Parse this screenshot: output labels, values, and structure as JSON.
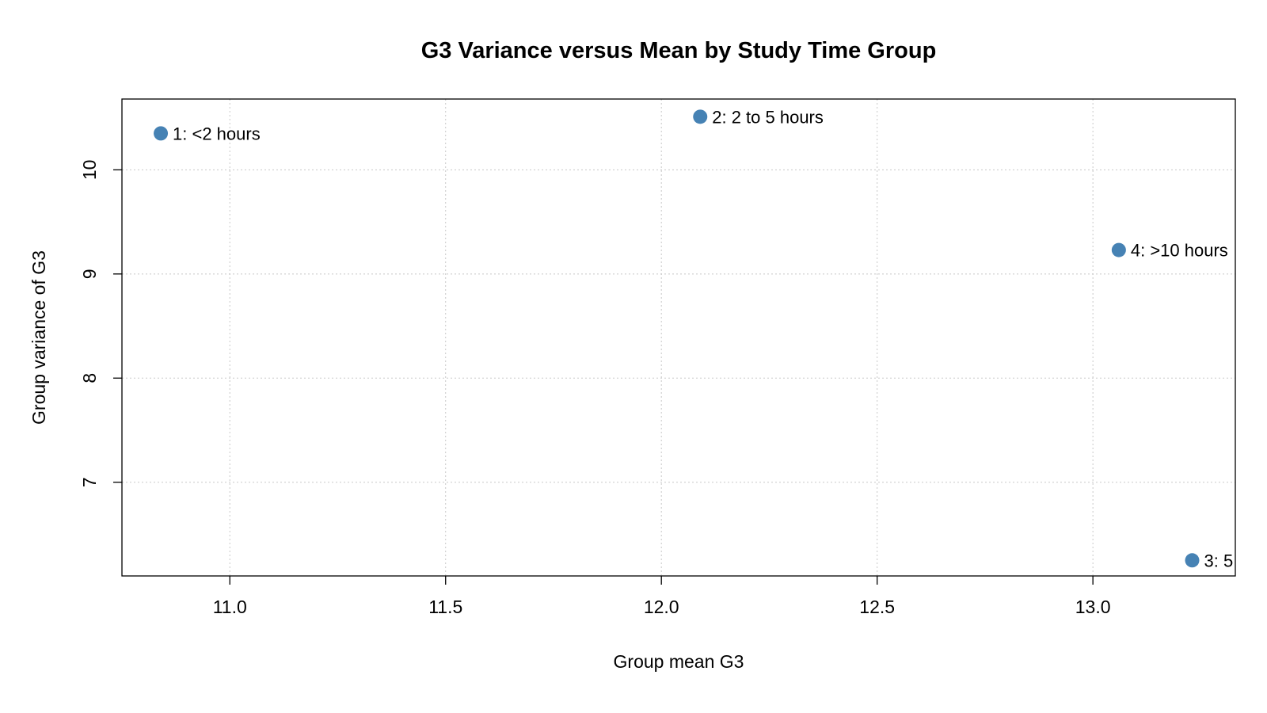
{
  "chart_data": {
    "type": "scatter",
    "title": "G3 Variance versus Mean by Study Time Group",
    "xlabel": "Group mean G3",
    "ylabel": "Group variance of G3",
    "xlim": [
      10.75,
      13.33
    ],
    "ylim": [
      6.1,
      10.68
    ],
    "x_ticks": [
      11.0,
      11.5,
      12.0,
      12.5,
      13.0
    ],
    "x_tick_labels": [
      "11.0",
      "11.5",
      "12.0",
      "12.5",
      "13.0"
    ],
    "y_ticks": [
      7,
      8,
      9,
      10
    ],
    "y_tick_labels": [
      "7",
      "8",
      "9",
      "10"
    ],
    "grid": true,
    "point_color": "#4682B4",
    "points": [
      {
        "label": "1: <2 hours",
        "x": 10.84,
        "y": 10.35
      },
      {
        "label": "2: 2 to 5 hours",
        "x": 12.09,
        "y": 10.51
      },
      {
        "label": "4: >10 hours",
        "x": 13.06,
        "y": 9.23
      },
      {
        "label": "3: 5",
        "x": 13.23,
        "y": 6.25
      }
    ]
  }
}
